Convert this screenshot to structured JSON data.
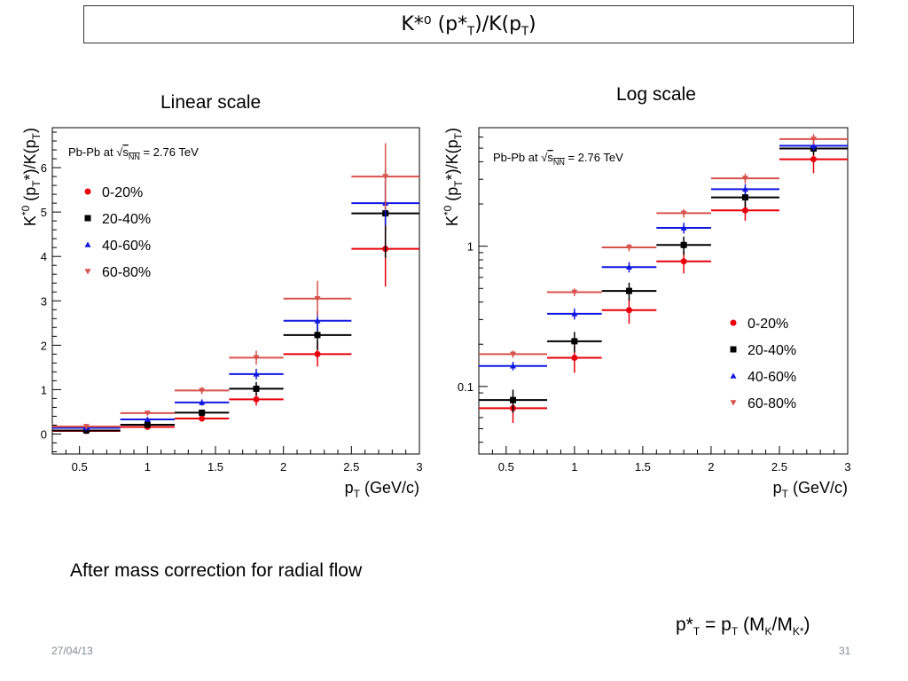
{
  "slide": {
    "title_main": "K*⁰ (p*",
    "title_sub1": "T",
    "title_mid": ")/K(p",
    "title_sub2": "T",
    "title_end": ")",
    "caption_linear": "Linear scale",
    "caption_log": "Log scale",
    "note": "After mass correction for radial flow",
    "formula": {
      "p1": "p*",
      "s1": "T",
      "p2": " = p",
      "s2": "T",
      "p3": " (M",
      "s3": "K",
      "p4": "/M",
      "s4": "K*",
      "p5": ")"
    },
    "date": "27/04/13",
    "page_number": "31"
  },
  "chart_data": [
    {
      "type": "scatter",
      "name": "linear",
      "annotation": "Pb-Pb at √s_NN = 2.76 TeV",
      "ylabel": "K*0 (pT*)/K(pT)",
      "xlabel": "pT (GeV/c)",
      "xlim": [
        0.3,
        3.0
      ],
      "ylim": [
        -0.45,
        6.9
      ],
      "yscale": "linear",
      "xticks": [
        0.5,
        1,
        1.5,
        2,
        2.5,
        3
      ],
      "xtick_labels": [
        "0.5",
        "1",
        "1.5",
        "2",
        "2.5",
        "3"
      ],
      "yticks": [
        0,
        1,
        2,
        3,
        4,
        5,
        6
      ],
      "ytick_labels": [
        "0",
        "1",
        "2",
        "3",
        "4",
        "5",
        "6"
      ],
      "legend_position": "top-left",
      "bins": [
        [
          0.3,
          0.8
        ],
        [
          0.8,
          1.2
        ],
        [
          1.2,
          1.6
        ],
        [
          1.6,
          2.0
        ],
        [
          2.0,
          2.5
        ],
        [
          2.5,
          3.0
        ]
      ],
      "x": [
        0.55,
        1.0,
        1.4,
        1.8,
        2.25,
        2.75
      ],
      "series": [
        {
          "name": "0-20%",
          "color": "#e8000b",
          "marker": "circle",
          "values": [
            0.07,
            0.16,
            0.35,
            0.78,
            1.8,
            4.17
          ],
          "errors": [
            0.02,
            0.04,
            0.07,
            0.14,
            0.28,
            0.85
          ]
        },
        {
          "name": "20-40%",
          "color": "#000000",
          "marker": "square",
          "values": [
            0.08,
            0.21,
            0.48,
            1.02,
            2.23,
            4.97
          ],
          "errors": [
            0.02,
            0.04,
            0.07,
            0.15,
            0.34,
            1.0
          ]
        },
        {
          "name": "40-60%",
          "color": "#1018e0",
          "marker": "triangle-up",
          "values": [
            0.14,
            0.33,
            0.71,
            1.35,
            2.55,
            5.2
          ],
          "errors": [
            0.02,
            0.04,
            0.07,
            0.12,
            0.22,
            0.5
          ]
        },
        {
          "name": "60-80%",
          "color": "#d8524c",
          "marker": "triangle-down",
          "values": [
            0.17,
            0.47,
            0.98,
            1.72,
            3.05,
            5.8
          ],
          "errors": [
            0.02,
            0.05,
            0.08,
            0.16,
            0.4,
            0.75
          ]
        }
      ]
    },
    {
      "type": "scatter",
      "name": "log",
      "annotation": "Pb-Pb at √s_NN = 2.76 TeV",
      "ylabel": "K*0 (pT*)/K(pT)",
      "xlabel": "pT (GeV/c)",
      "xlim": [
        0.3,
        3.0
      ],
      "ylim": [
        0.033,
        7.0
      ],
      "yscale": "log",
      "xticks": [
        0.5,
        1,
        1.5,
        2,
        2.5,
        3
      ],
      "xtick_labels": [
        "0.5",
        "1",
        "1.5",
        "2",
        "2.5",
        "3"
      ],
      "yticks": [
        0.1,
        1
      ],
      "ytick_labels": [
        "0.1",
        "1"
      ],
      "legend_position": "right",
      "bins": [
        [
          0.3,
          0.8
        ],
        [
          0.8,
          1.2
        ],
        [
          1.2,
          1.6
        ],
        [
          1.6,
          2.0
        ],
        [
          2.0,
          2.5
        ],
        [
          2.5,
          3.0
        ]
      ],
      "x": [
        0.55,
        1.0,
        1.4,
        1.8,
        2.25,
        2.75
      ],
      "series": [
        {
          "name": "0-20%",
          "color": "#e8000b",
          "marker": "circle",
          "values": [
            0.07,
            0.16,
            0.35,
            0.78,
            1.8,
            4.17
          ],
          "errors": [
            0.015,
            0.035,
            0.07,
            0.14,
            0.28,
            0.85
          ]
        },
        {
          "name": "20-40%",
          "color": "#000000",
          "marker": "square",
          "values": [
            0.08,
            0.21,
            0.48,
            1.02,
            2.23,
            4.97
          ],
          "errors": [
            0.015,
            0.035,
            0.07,
            0.15,
            0.34,
            0.5
          ]
        },
        {
          "name": "40-60%",
          "color": "#1018e0",
          "marker": "triangle-up",
          "values": [
            0.14,
            0.33,
            0.71,
            1.35,
            2.55,
            5.2
          ],
          "errors": [
            0.01,
            0.03,
            0.06,
            0.12,
            0.22,
            0.4
          ]
        },
        {
          "name": "60-80%",
          "color": "#d8524c",
          "marker": "triangle-down",
          "values": [
            0.17,
            0.47,
            0.98,
            1.72,
            3.05,
            5.8
          ],
          "errors": [
            0.01,
            0.03,
            0.06,
            0.12,
            0.25,
            0.5
          ]
        }
      ]
    }
  ]
}
